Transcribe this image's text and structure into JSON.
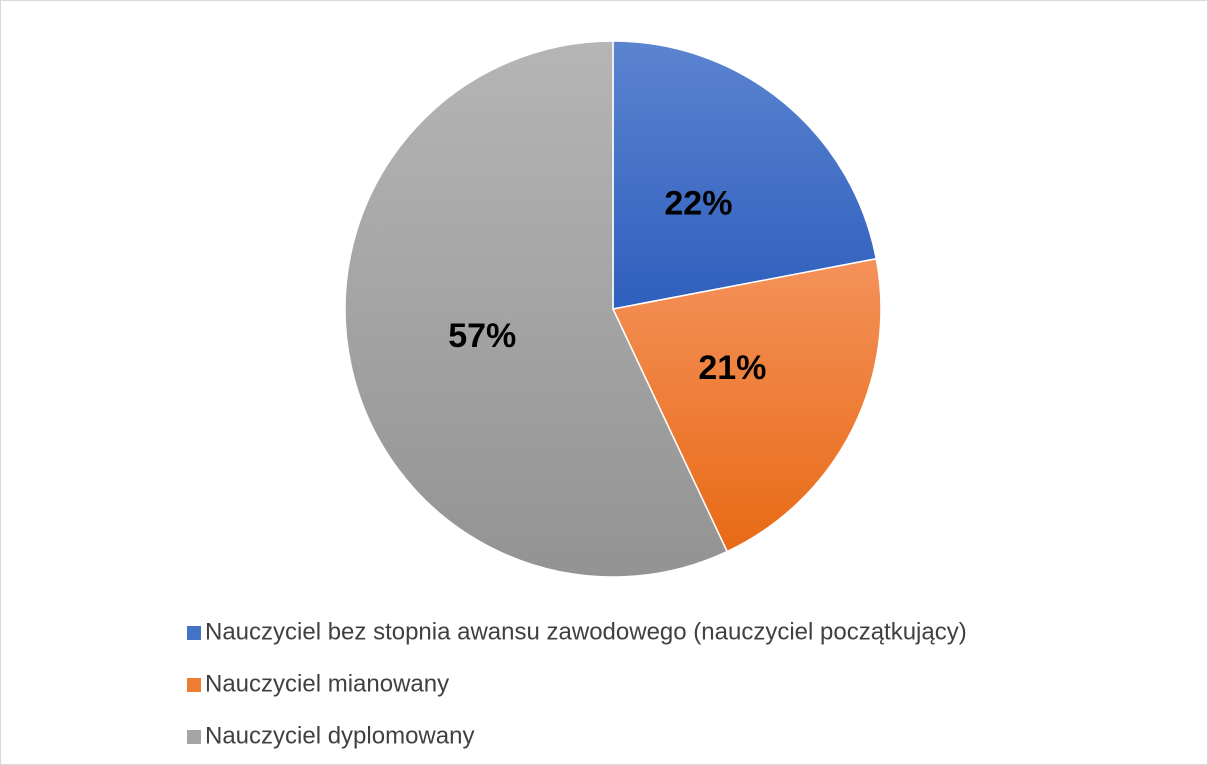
{
  "chart_data": {
    "type": "pie",
    "categories": [
      "Nauczyciel bez stopnia awansu zawodowego (nauczyciel początkujący)",
      "Nauczyciel mianowany",
      "Nauczyciel dyplomowany"
    ],
    "values": [
      22,
      21,
      57
    ],
    "value_labels": [
      "22%",
      "21%",
      "57%"
    ],
    "colors": [
      "#4472c4",
      "#ed7d31",
      "#a5a5a5"
    ],
    "legend": "bottom"
  }
}
